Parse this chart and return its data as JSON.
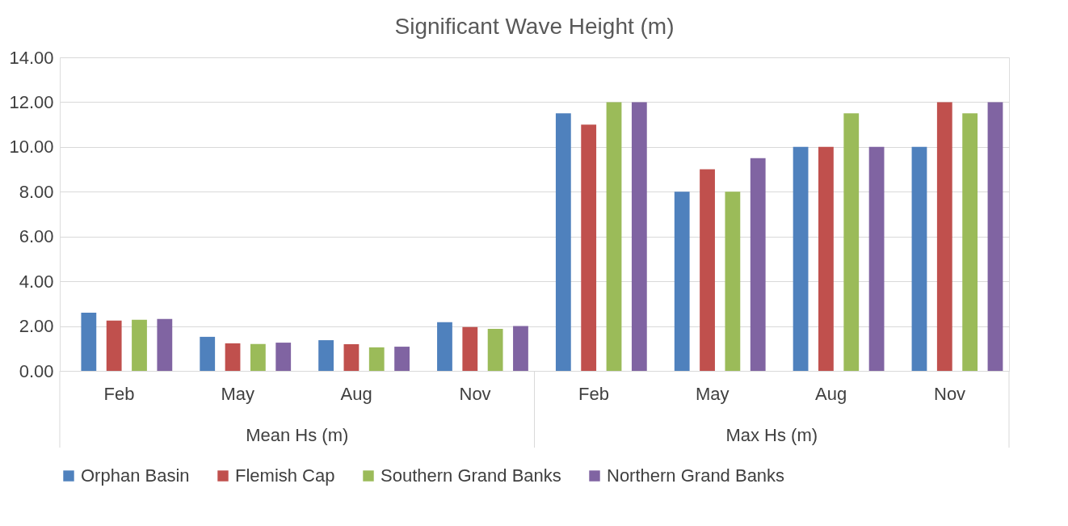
{
  "chart_data": {
    "type": "bar",
    "title": "Significant Wave Height (m)",
    "categories": [
      "Feb",
      "May",
      "Aug",
      "Nov",
      "Feb",
      "May",
      "Aug",
      "Nov"
    ],
    "annotations": [
      "Mean Hs (m)",
      "Max Hs (m)"
    ],
    "series": [
      {
        "name": "Orphan Basin",
        "color": "#4f81bd",
        "values": [
          2.6,
          1.52,
          1.37,
          2.17,
          11.5,
          8,
          10,
          10
        ]
      },
      {
        "name": "Flemish Cap",
        "color": "#c0504d",
        "values": [
          2.25,
          1.23,
          1.19,
          1.96,
          11,
          9,
          10,
          12
        ]
      },
      {
        "name": "Southern Grand Banks",
        "color": "#9bbb59",
        "values": [
          2.28,
          1.2,
          1.05,
          1.88,
          12,
          8,
          11.5,
          11.5
        ]
      },
      {
        "name": "Northern Grand Banks",
        "color": "#8064a2",
        "values": [
          2.32,
          1.26,
          1.08,
          2.0,
          12,
          9.5,
          10,
          12
        ]
      }
    ],
    "ylim": [
      0,
      14
    ],
    "yticks": [
      {
        "value": 0,
        "label": "0.00"
      },
      {
        "value": 2,
        "label": "2.00"
      },
      {
        "value": 4,
        "label": "4.00"
      },
      {
        "value": 6,
        "label": "6.00"
      },
      {
        "value": 8,
        "label": "8.00"
      },
      {
        "value": 10,
        "label": "10.00"
      },
      {
        "value": 12,
        "label": "12.00"
      },
      {
        "value": 14,
        "label": "14.00"
      }
    ],
    "grid": "y",
    "legend": "bottom"
  }
}
